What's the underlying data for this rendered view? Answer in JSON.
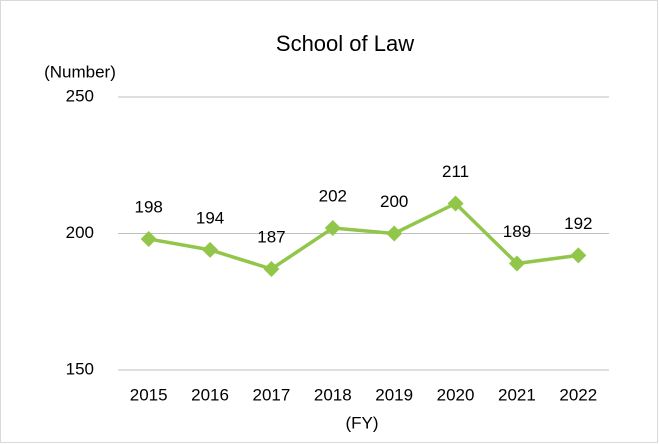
{
  "chart_data": {
    "type": "line",
    "title": "School of Law",
    "y_label": "(Number)",
    "x_label": "(FY)",
    "categories": [
      "2015",
      "2016",
      "2017",
      "2018",
      "2019",
      "2020",
      "2021",
      "2022"
    ],
    "series": [
      {
        "name": "School of Law",
        "color": "#92c64a",
        "values": [
          198,
          194,
          187,
          202,
          200,
          211,
          189,
          192
        ]
      }
    ],
    "ylim": [
      150,
      250
    ],
    "yticks": [
      150,
      200,
      250
    ],
    "grid": true
  }
}
